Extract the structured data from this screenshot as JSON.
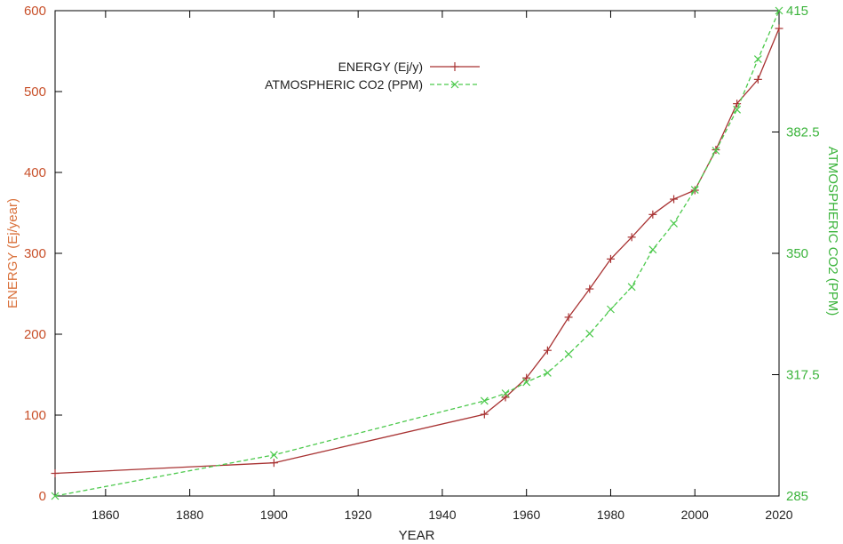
{
  "chart_data": {
    "type": "line",
    "xlabel": "YEAR",
    "ylabel_left": "ENERGY (Ej/year)",
    "ylabel_right": "ATMOSPHERIC CO2 (PPM)",
    "xlim": [
      1848,
      2020
    ],
    "xticks": [
      1860,
      1880,
      1900,
      1920,
      1940,
      1960,
      1980,
      2000,
      2020
    ],
    "ylim_left": [
      0,
      600
    ],
    "yticks_left": [
      0,
      100,
      200,
      300,
      400,
      500,
      600
    ],
    "ylim_right": [
      285,
      415
    ],
    "yticks_right": [
      "285",
      "317.5",
      "350",
      "382.5",
      "415"
    ],
    "legend_position": "top-center",
    "grid": false,
    "series": [
      {
        "name": "ENERGY (Ej/y)",
        "axis": "left",
        "color": "#a83232",
        "marker": "plus",
        "dash": "solid",
        "x": [
          1848,
          1900,
          1950,
          1955,
          1960,
          1965,
          1970,
          1975,
          1980,
          1985,
          1990,
          1995,
          2000,
          2005,
          2010,
          2015,
          2020
        ],
        "values": [
          28,
          41,
          101,
          122,
          146,
          180,
          221,
          256,
          293,
          320,
          348,
          367,
          378,
          428,
          485,
          515,
          578
        ]
      },
      {
        "name": "ATMOSPHERIC CO2 (PPM)",
        "axis": "right",
        "color": "#4cc94c",
        "marker": "x",
        "dash": "dashed",
        "x": [
          1848,
          1900,
          1950,
          1955,
          1960,
          1965,
          1970,
          1975,
          1980,
          1985,
          1990,
          1995,
          2000,
          2005,
          2010,
          2015,
          2020
        ],
        "values": [
          285,
          296,
          310.5,
          312.5,
          315.5,
          318,
          323,
          328.5,
          335,
          341,
          351,
          358,
          367,
          377.5,
          388.5,
          402,
          415
        ]
      }
    ]
  }
}
